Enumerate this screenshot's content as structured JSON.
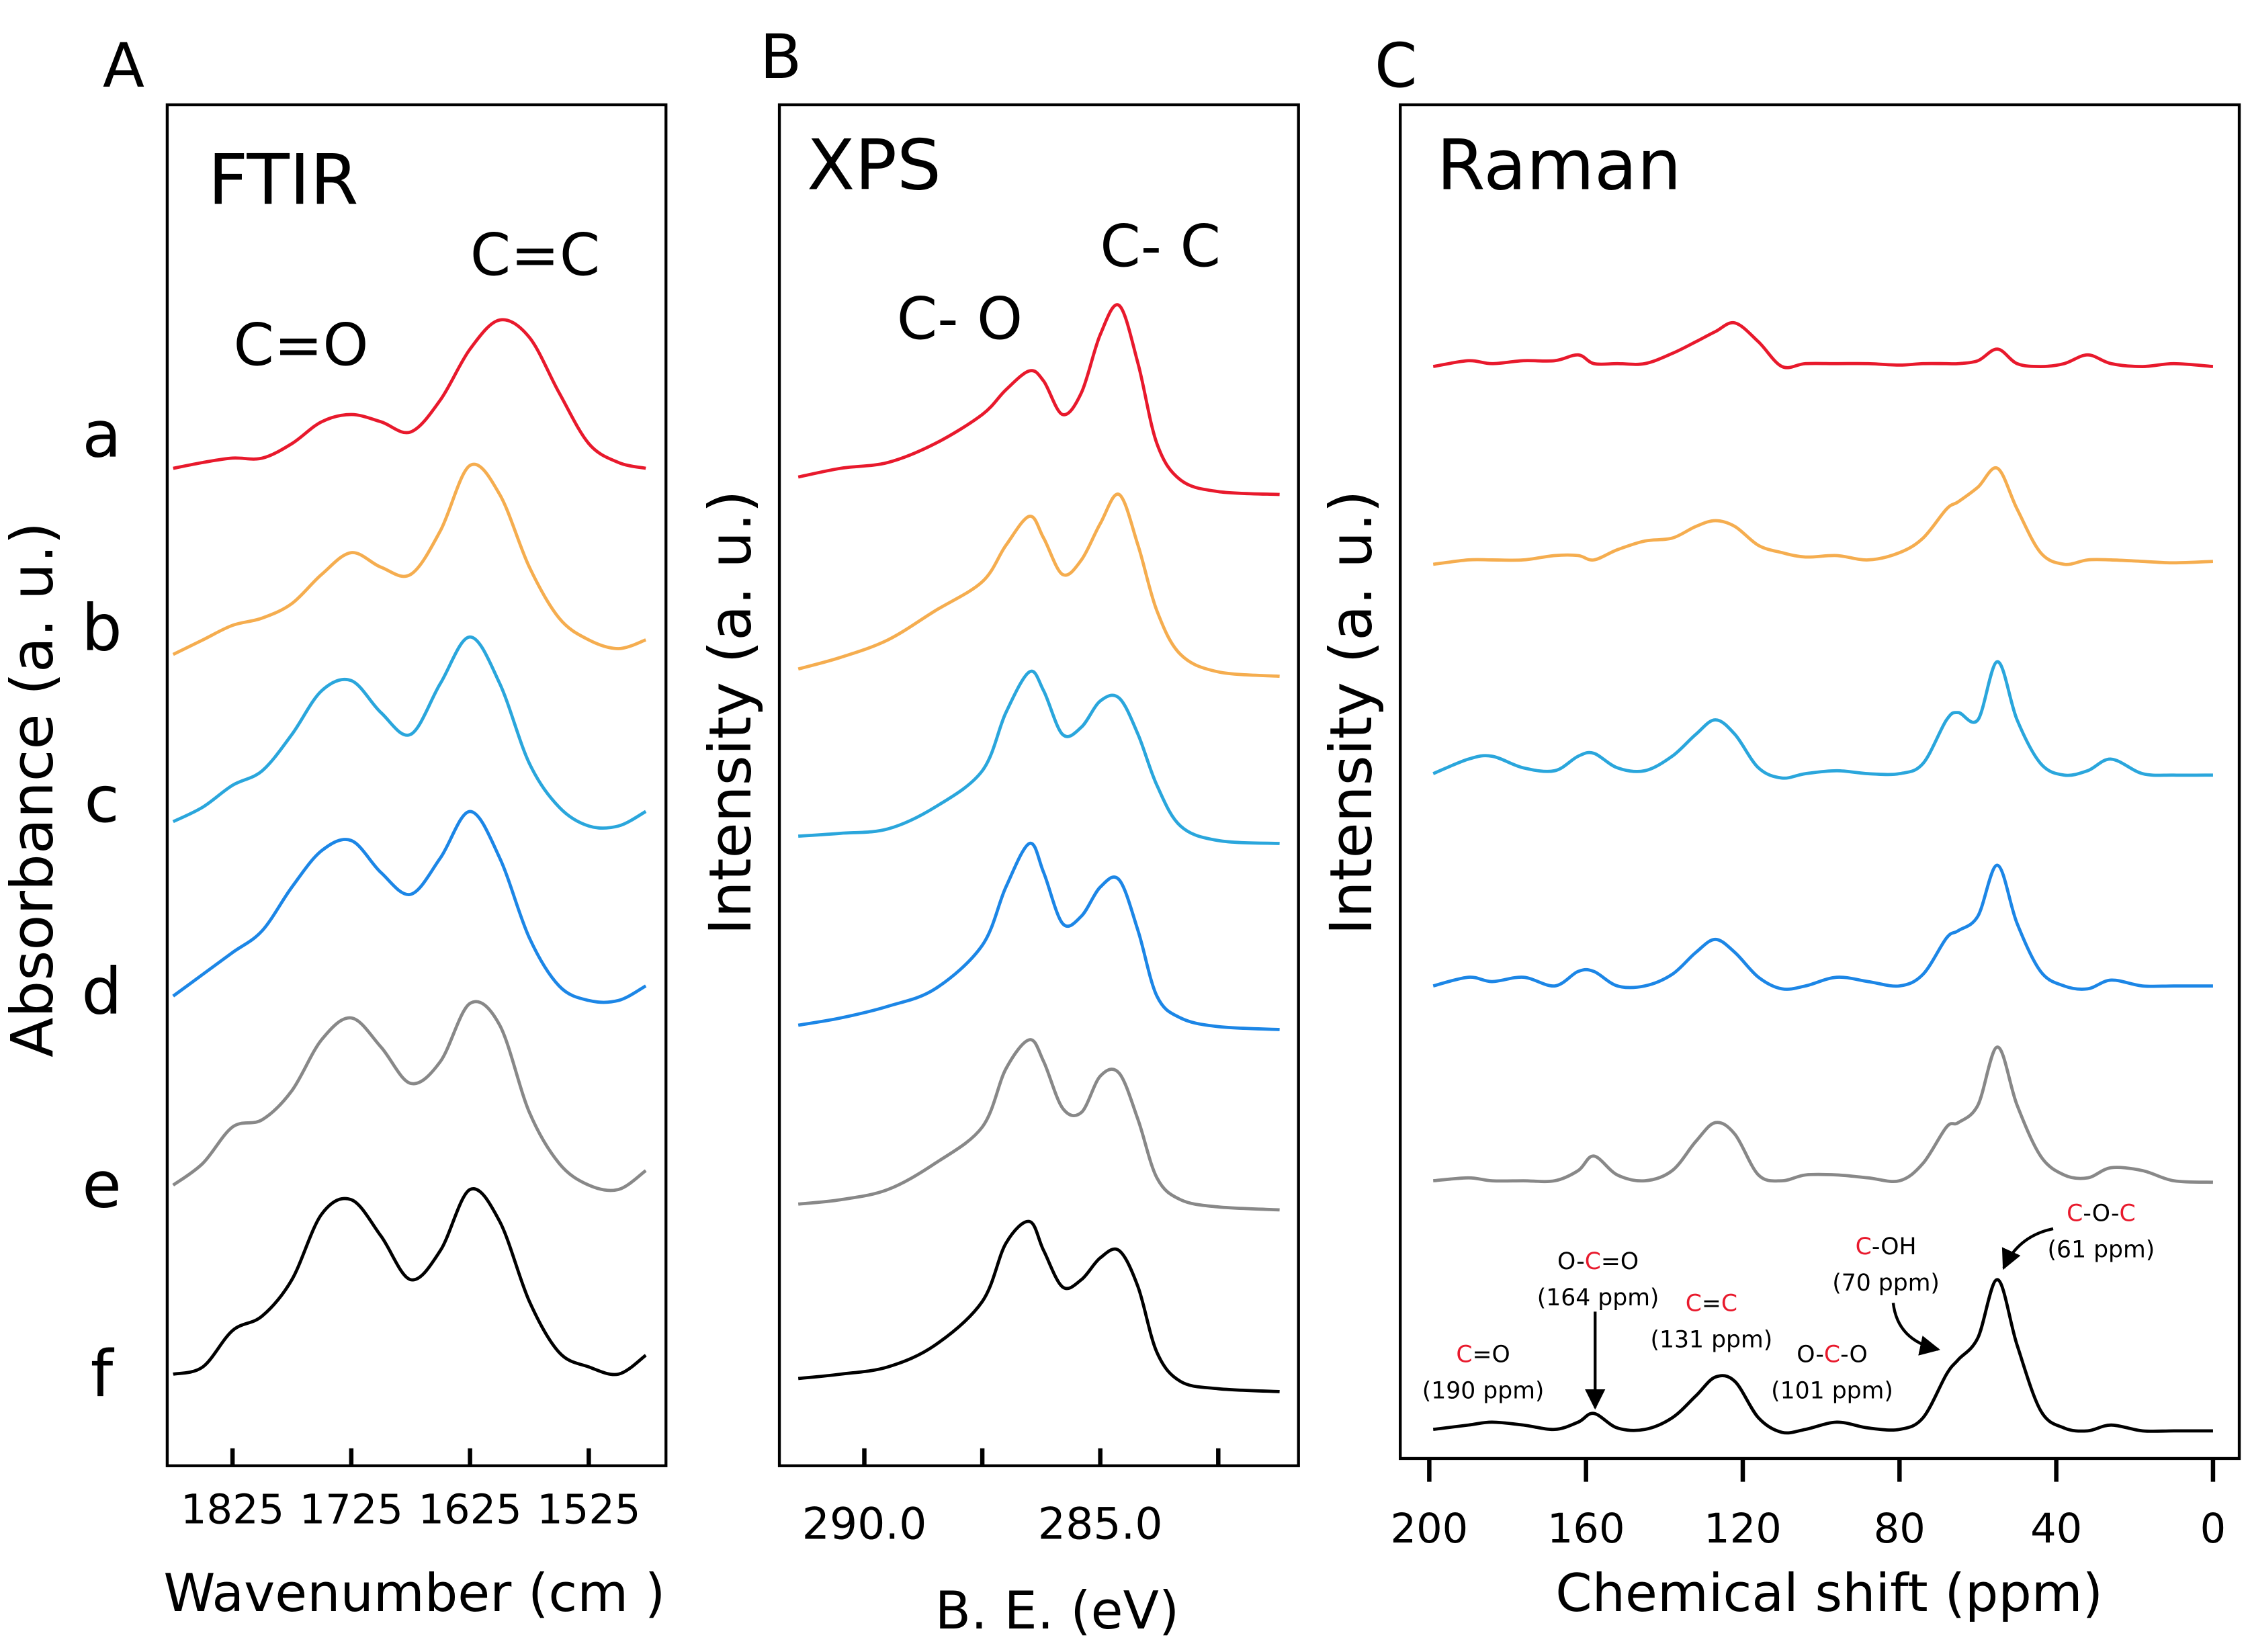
{
  "chart_data": [
    {
      "type": "line",
      "panel_label": "A",
      "title": "FTIR",
      "ylabel": "Absorbance (a. u.)",
      "xlabel": "Wavenumber (cm  )",
      "peak_labels": [
        "C=O",
        "C=C"
      ],
      "xlim": [
        1880,
        1460
      ],
      "xticks": [
        1825,
        1725,
        1625,
        1525
      ],
      "x": [
        1875,
        1850,
        1825,
        1800,
        1775,
        1750,
        1725,
        1700,
        1675,
        1650,
        1625,
        1600,
        1575,
        1550,
        1525,
        1500,
        1477
      ],
      "series": [
        {
          "name": "a",
          "color": "#e8192c",
          "values": [
            0.03,
            0.07,
            0.1,
            0.1,
            0.2,
            0.35,
            0.4,
            0.35,
            0.28,
            0.5,
            0.85,
            1.05,
            0.93,
            0.55,
            0.2,
            0.07,
            0.03
          ]
        },
        {
          "name": "b",
          "color": "#f5ad4f",
          "values": [
            0,
            0.1,
            0.2,
            0.25,
            0.35,
            0.55,
            0.7,
            0.6,
            0.55,
            0.85,
            1.3,
            1.1,
            0.6,
            0.25,
            0.1,
            0.04,
            0.1
          ]
        },
        {
          "name": "c",
          "color": "#2aa6dc",
          "values": [
            0.03,
            0.13,
            0.28,
            0.38,
            0.63,
            0.93,
            1.0,
            0.78,
            0.63,
            0.98,
            1.3,
            0.98,
            0.43,
            0.13,
            0,
            0,
            0.1
          ]
        },
        {
          "name": "d",
          "color": "#1c86e6",
          "values": [
            0.03,
            0.18,
            0.33,
            0.48,
            0.78,
            1.03,
            1.1,
            0.88,
            0.73,
            0.98,
            1.3,
            0.98,
            0.43,
            0.1,
            0,
            0,
            0.1
          ]
        },
        {
          "name": "e",
          "color": "#888888",
          "values": [
            0.03,
            0.18,
            0.43,
            0.48,
            0.68,
            1.03,
            1.18,
            0.98,
            0.73,
            0.88,
            1.28,
            1.13,
            0.53,
            0.18,
            0.03,
            0,
            0.13
          ]
        },
        {
          "name": "f",
          "color": "#000000",
          "values": [
            0,
            0.05,
            0.3,
            0.4,
            0.65,
            1.1,
            1.2,
            0.95,
            0.65,
            0.85,
            1.27,
            1.05,
            0.5,
            0.15,
            0.05,
            0,
            0.13
          ]
        }
      ]
    },
    {
      "type": "line",
      "panel_label": "B",
      "title": "XPS",
      "ylabel": "Intensity (a. u.)",
      "xlabel": "B. E. (eV)",
      "peak_labels": [
        "C- O",
        "C- C"
      ],
      "xlim": [
        291.8,
        280.8
      ],
      "xticks": [
        {
          "value": 290,
          "label": "290.0"
        },
        {
          "value": 285,
          "label": "285.0"
        }
      ],
      "xminorticks": [
        287.5,
        282.5
      ],
      "x": [
        291.4,
        290.5,
        289.5,
        288.5,
        287.5,
        287,
        286.5,
        286.2,
        285.8,
        285.4,
        285,
        284.6,
        284.2,
        283.8,
        283.3,
        282.5,
        281.2
      ],
      "series": [
        {
          "color": "#e8192c",
          "values": [
            0.12,
            0.18,
            0.22,
            0.35,
            0.55,
            0.72,
            0.85,
            0.78,
            0.55,
            0.7,
            1.1,
            1.3,
            0.9,
            0.35,
            0.1,
            0.02,
            0
          ]
        },
        {
          "color": "#f5ad4f",
          "values": [
            0.05,
            0.13,
            0.25,
            0.45,
            0.65,
            0.9,
            1.1,
            0.95,
            0.7,
            0.8,
            1.05,
            1.25,
            0.9,
            0.45,
            0.15,
            0.03,
            0
          ]
        },
        {
          "color": "#2aa6dc",
          "values": [
            0.05,
            0.07,
            0.1,
            0.25,
            0.5,
            0.9,
            1.18,
            1.05,
            0.75,
            0.8,
            0.98,
            1.0,
            0.75,
            0.4,
            0.12,
            0.02,
            0
          ]
        },
        {
          "color": "#1c86e6",
          "values": [
            0.03,
            0.08,
            0.16,
            0.28,
            0.58,
            0.98,
            1.28,
            1.08,
            0.73,
            0.78,
            0.98,
            1.03,
            0.68,
            0.23,
            0.08,
            0.02,
            0
          ]
        },
        {
          "color": "#888888",
          "values": [
            0.04,
            0.07,
            0.14,
            0.32,
            0.57,
            0.97,
            1.17,
            1.02,
            0.7,
            0.67,
            0.92,
            0.94,
            0.62,
            0.22,
            0.07,
            0.02,
            0
          ]
        },
        {
          "color": "#000000",
          "values": [
            0.09,
            0.12,
            0.17,
            0.32,
            0.62,
            1.02,
            1.17,
            0.97,
            0.72,
            0.77,
            0.92,
            0.97,
            0.72,
            0.27,
            0.07,
            0.02,
            0
          ]
        }
      ]
    },
    {
      "type": "line",
      "panel_label": "C",
      "title": "Raman",
      "ylabel": "Intensity (a. u.)",
      "xlabel": "Chemical shift (ppm)",
      "xlim": [
        207.4,
        -6.7
      ],
      "xticks": [
        200,
        160,
        120,
        80,
        40,
        0
      ],
      "x": [
        199,
        190,
        184,
        176,
        168,
        162,
        158,
        152,
        145,
        138,
        132,
        127,
        122,
        116,
        110,
        104,
        96,
        88,
        80,
        74,
        68,
        65,
        60,
        55,
        50,
        44,
        38,
        32,
        26,
        18,
        10,
        0
      ],
      "series": [
        {
          "color": "#e8192c",
          "values": [
            0.01,
            0.05,
            0.03,
            0.05,
            0.05,
            0.09,
            0.03,
            0.03,
            0.03,
            0.1,
            0.18,
            0.25,
            0.31,
            0.18,
            0.01,
            0.03,
            0.03,
            0.03,
            0.02,
            0.03,
            0.03,
            0.03,
            0.05,
            0.13,
            0.03,
            0.01,
            0.03,
            0.09,
            0.03,
            0.01,
            0.03,
            0.01
          ]
        },
        {
          "color": "#f5ad4f",
          "values": [
            0.02,
            0.05,
            0.05,
            0.05,
            0.08,
            0.08,
            0.05,
            0.12,
            0.18,
            0.2,
            0.28,
            0.32,
            0.28,
            0.15,
            0.1,
            0.07,
            0.08,
            0.05,
            0.1,
            0.2,
            0.4,
            0.45,
            0.55,
            0.68,
            0.4,
            0.1,
            0.02,
            0.05,
            0.05,
            0.04,
            0.03,
            0.04
          ]
        },
        {
          "color": "#2aa6dc",
          "values": [
            0.03,
            0.13,
            0.15,
            0.07,
            0.05,
            0.15,
            0.17,
            0.07,
            0.05,
            0.15,
            0.3,
            0.4,
            0.3,
            0.07,
            0,
            0.03,
            0.05,
            0.03,
            0.03,
            0.1,
            0.4,
            0.45,
            0.4,
            0.8,
            0.4,
            0.1,
            0.02,
            0.05,
            0.13,
            0.03,
            0.02,
            0.02
          ]
        },
        {
          "color": "#1c86e6",
          "values": [
            0.02,
            0.08,
            0.05,
            0.08,
            0.02,
            0.12,
            0.12,
            0.02,
            0.02,
            0.1,
            0.25,
            0.34,
            0.25,
            0.08,
            0,
            0.02,
            0.08,
            0.05,
            0.02,
            0.1,
            0.35,
            0.4,
            0.5,
            0.85,
            0.45,
            0.12,
            0.02,
            0,
            0.06,
            0.02,
            0.02,
            0.02
          ]
        },
        {
          "color": "#888888",
          "values": [
            0.03,
            0.05,
            0.03,
            0.03,
            0.03,
            0.1,
            0.2,
            0.07,
            0.03,
            0.1,
            0.3,
            0.43,
            0.35,
            0.07,
            0.03,
            0.07,
            0.07,
            0.05,
            0.03,
            0.15,
            0.4,
            0.43,
            0.55,
            0.95,
            0.55,
            0.2,
            0.07,
            0.05,
            0.12,
            0.1,
            0.03,
            0.02
          ]
        },
        {
          "color": "#000000",
          "values": [
            0.02,
            0.05,
            0.07,
            0.05,
            0.02,
            0.07,
            0.13,
            0.03,
            0.02,
            0.1,
            0.25,
            0.38,
            0.35,
            0.1,
            0,
            0.02,
            0.07,
            0.03,
            0.02,
            0.1,
            0.4,
            0.5,
            0.65,
            1.05,
            0.6,
            0.15,
            0.03,
            0.01,
            0.05,
            0.01,
            0.01,
            0.01
          ]
        }
      ],
      "annotations": [
        {
          "formula": [
            {
              "text": "C",
              "color": "#e8192c"
            },
            {
              "text": "=O"
            }
          ],
          "note": "(190 ppm)"
        },
        {
          "formula": [
            {
              "text": "O-"
            },
            {
              "text": "C",
              "color": "#e8192c"
            },
            {
              "text": "=O"
            }
          ],
          "note": "(164 ppm)"
        },
        {
          "formula": [
            {
              "text": "C",
              "color": "#e8192c"
            },
            {
              "text": "="
            },
            {
              "text": "C",
              "color": "#e8192c"
            }
          ],
          "note": "(131 ppm)"
        },
        {
          "formula": [
            {
              "text": "O-"
            },
            {
              "text": "C",
              "color": "#e8192c"
            },
            {
              "text": "-O"
            }
          ],
          "note": "(101 ppm)"
        },
        {
          "formula": [
            {
              "text": "C",
              "color": "#e8192c"
            },
            {
              "text": "-OH"
            }
          ],
          "note": "(70 ppm)"
        },
        {
          "formula": [
            {
              "text": "C",
              "color": "#e8192c"
            },
            {
              "text": "-O-"
            },
            {
              "text": "C",
              "color": "#e8192c"
            }
          ],
          "note": "(61 ppm)"
        }
      ]
    }
  ]
}
